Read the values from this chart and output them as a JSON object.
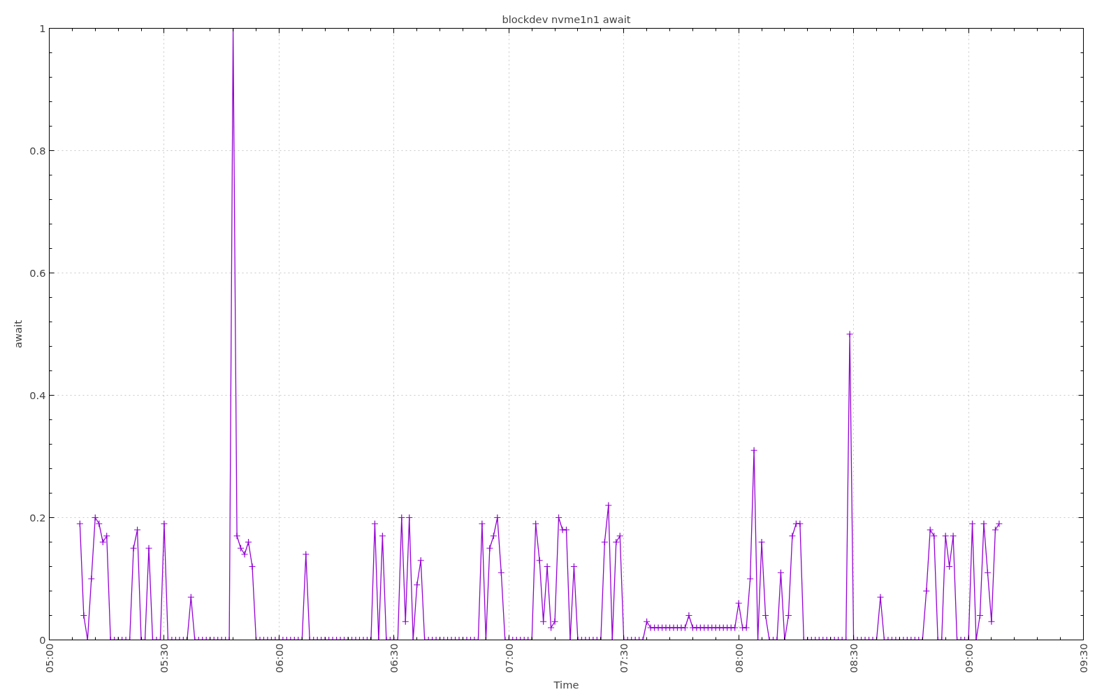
{
  "chart_data": {
    "type": "line",
    "title": "blockdev nvme1n1 await",
    "xlabel": "Time",
    "ylabel": "await",
    "x": [
      5.1333,
      5.15,
      5.1667,
      5.1833,
      5.2,
      5.2167,
      5.2333,
      5.25,
      5.2667,
      5.2833,
      5.3,
      5.3167,
      5.3333,
      5.35,
      5.3667,
      5.3833,
      5.4,
      5.4167,
      5.4333,
      5.45,
      5.4667,
      5.4833,
      5.5,
      5.5167,
      5.5333,
      5.55,
      5.5667,
      5.5833,
      5.6,
      5.6167,
      5.6333,
      5.65,
      5.6667,
      5.6833,
      5.7,
      5.7167,
      5.7333,
      5.75,
      5.7667,
      5.7833,
      5.8,
      5.8167,
      5.8333,
      5.85,
      5.8667,
      5.8833,
      5.9,
      5.9167,
      5.9333,
      5.95,
      5.9667,
      5.9833,
      6.0,
      6.0167,
      6.0333,
      6.05,
      6.0667,
      6.0833,
      6.1,
      6.1167,
      6.1333,
      6.15,
      6.1667,
      6.1833,
      6.2,
      6.2167,
      6.2333,
      6.25,
      6.2667,
      6.2833,
      6.3,
      6.3167,
      6.3333,
      6.35,
      6.3667,
      6.3833,
      6.4,
      6.4167,
      6.4333,
      6.45,
      6.4667,
      6.4833,
      6.5,
      6.5167,
      6.5333,
      6.55,
      6.5667,
      6.5833,
      6.6,
      6.6167,
      6.6333,
      6.65,
      6.6667,
      6.6833,
      6.7,
      6.7167,
      6.7333,
      6.75,
      6.7667,
      6.7833,
      6.8,
      6.8167,
      6.8333,
      6.85,
      6.8667,
      6.8833,
      6.9,
      6.9167,
      6.9333,
      6.95,
      6.9667,
      6.9833,
      7.0,
      7.0167,
      7.0333,
      7.05,
      7.0667,
      7.0833,
      7.1,
      7.1167,
      7.1333,
      7.15,
      7.1667,
      7.1833,
      7.2,
      7.2167,
      7.2333,
      7.25,
      7.2667,
      7.2833,
      7.3,
      7.3167,
      7.3333,
      7.35,
      7.3667,
      7.3833,
      7.4,
      7.4167,
      7.4333,
      7.45,
      7.4667,
      7.4833,
      7.5,
      7.5167,
      7.5333,
      7.55,
      7.5667,
      7.5833,
      7.6,
      7.6167,
      7.6333,
      7.65,
      7.6667,
      7.6833,
      7.7,
      7.7167,
      7.7333,
      7.75,
      7.7667,
      7.7833,
      7.8,
      7.8167,
      7.8333,
      7.85,
      7.8667,
      7.8833,
      7.9,
      7.9167,
      7.9333,
      7.95,
      7.9667,
      7.9833,
      8.0,
      8.0167,
      8.0333,
      8.05,
      8.0667,
      8.0833,
      8.1,
      8.1167,
      8.1333,
      8.15,
      8.1667,
      8.1833,
      8.2,
      8.2167,
      8.2333,
      8.25,
      8.2667,
      8.2833,
      8.3,
      8.3167,
      8.3333,
      8.35,
      8.3667,
      8.3833,
      8.4,
      8.4167,
      8.4333,
      8.45,
      8.4667,
      8.4833,
      8.5,
      8.5167,
      8.5333,
      8.55,
      8.5667,
      8.5833,
      8.6,
      8.6167,
      8.6333,
      8.65,
      8.6667,
      8.6833,
      8.7,
      8.7167,
      8.7333,
      8.75,
      8.7667,
      8.7833,
      8.8,
      8.8167,
      8.8333,
      8.85,
      8.8667,
      8.8833,
      8.9,
      8.9167,
      8.9333,
      8.95,
      8.9667,
      8.9833,
      9.0,
      9.0167,
      9.0333,
      9.05,
      9.0667,
      9.0833,
      9.1,
      9.1167,
      9.1333
    ],
    "series": [
      {
        "color": "#9400d3",
        "values": [
          0.19,
          0.04,
          0,
          0.1,
          0.2,
          0.19,
          0.16,
          0.17,
          0,
          0,
          0,
          0,
          0,
          0,
          0.15,
          0.18,
          0,
          0,
          0.15,
          0,
          0,
          0,
          0.19,
          0,
          0,
          0,
          0,
          0,
          0,
          0.07,
          0,
          0,
          0,
          0,
          0,
          0,
          0,
          0,
          0,
          0,
          1,
          0.17,
          0.15,
          0.14,
          0.16,
          0.12,
          0,
          0,
          0,
          0,
          0,
          0,
          0,
          0,
          0,
          0,
          0,
          0,
          0,
          0.14,
          0,
          0,
          0,
          0,
          0,
          0,
          0,
          0,
          0,
          0,
          0,
          0,
          0,
          0,
          0,
          0,
          0,
          0.19,
          0,
          0.17,
          0,
          0,
          0,
          0,
          0.2,
          0.03,
          0.2,
          0,
          0.09,
          0.13,
          0,
          0,
          0,
          0,
          0,
          0,
          0,
          0,
          0,
          0,
          0,
          0,
          0,
          0,
          0,
          0.19,
          0,
          0.15,
          0.17,
          0.2,
          0.11,
          0,
          0,
          0,
          0,
          0,
          0,
          0,
          0,
          0.19,
          0.13,
          0.03,
          0.12,
          0.02,
          0.03,
          0.2,
          0.18,
          0.18,
          0,
          0.12,
          0,
          0,
          0,
          0,
          0,
          0,
          0,
          0.16,
          0.22,
          0,
          0.16,
          0.17,
          0,
          0,
          0,
          0,
          0,
          0,
          0.03,
          0.02,
          0.02,
          0.02,
          0.02,
          0.02,
          0.02,
          0.02,
          0.02,
          0.02,
          0.02,
          0.04,
          0.02,
          0.02,
          0.02,
          0.02,
          0.02,
          0.02,
          0.02,
          0.02,
          0.02,
          0.02,
          0.02,
          0.02,
          0.06,
          0.02,
          0.02,
          0.1,
          0.31,
          0,
          0.16,
          0.04,
          0,
          0,
          0,
          0.11,
          0,
          0.04,
          0.17,
          0.19,
          0.19,
          0,
          0,
          0,
          0,
          0,
          0,
          0,
          0,
          0,
          0,
          0,
          0,
          0.5,
          0,
          0,
          0,
          0,
          0,
          0,
          0,
          0.07,
          0,
          0,
          0,
          0,
          0,
          0,
          0,
          0,
          0,
          0,
          0,
          0.08,
          0.18,
          0.17,
          0,
          0,
          0.17,
          0.12,
          0.17,
          0,
          0,
          0,
          0,
          0.19,
          0,
          0.04,
          0.19,
          0.11,
          0.03,
          0.18,
          0.19
        ]
      }
    ],
    "xlim": [
      5.0,
      9.5
    ],
    "xticks": [
      {
        "value": 5.0,
        "label": "05:00"
      },
      {
        "value": 5.5,
        "label": "05:30"
      },
      {
        "value": 6.0,
        "label": "06:00"
      },
      {
        "value": 6.5,
        "label": "06:30"
      },
      {
        "value": 7.0,
        "label": "07:00"
      },
      {
        "value": 7.5,
        "label": "07:30"
      },
      {
        "value": 8.0,
        "label": "08:00"
      },
      {
        "value": 8.5,
        "label": "08:30"
      },
      {
        "value": 9.0,
        "label": "09:00"
      },
      {
        "value": 9.5,
        "label": "09:30"
      }
    ],
    "ylim": [
      0,
      1
    ],
    "yticks": [
      0,
      {
        "value": 0.2,
        "label": "0.2"
      },
      {
        "value": 0.4,
        "label": "0.4"
      },
      {
        "value": 0.6,
        "label": "0.6"
      },
      {
        "value": 0.8,
        "label": "0.8"
      },
      1
    ],
    "grid": true,
    "marker": "cross",
    "line_style": "solid"
  }
}
